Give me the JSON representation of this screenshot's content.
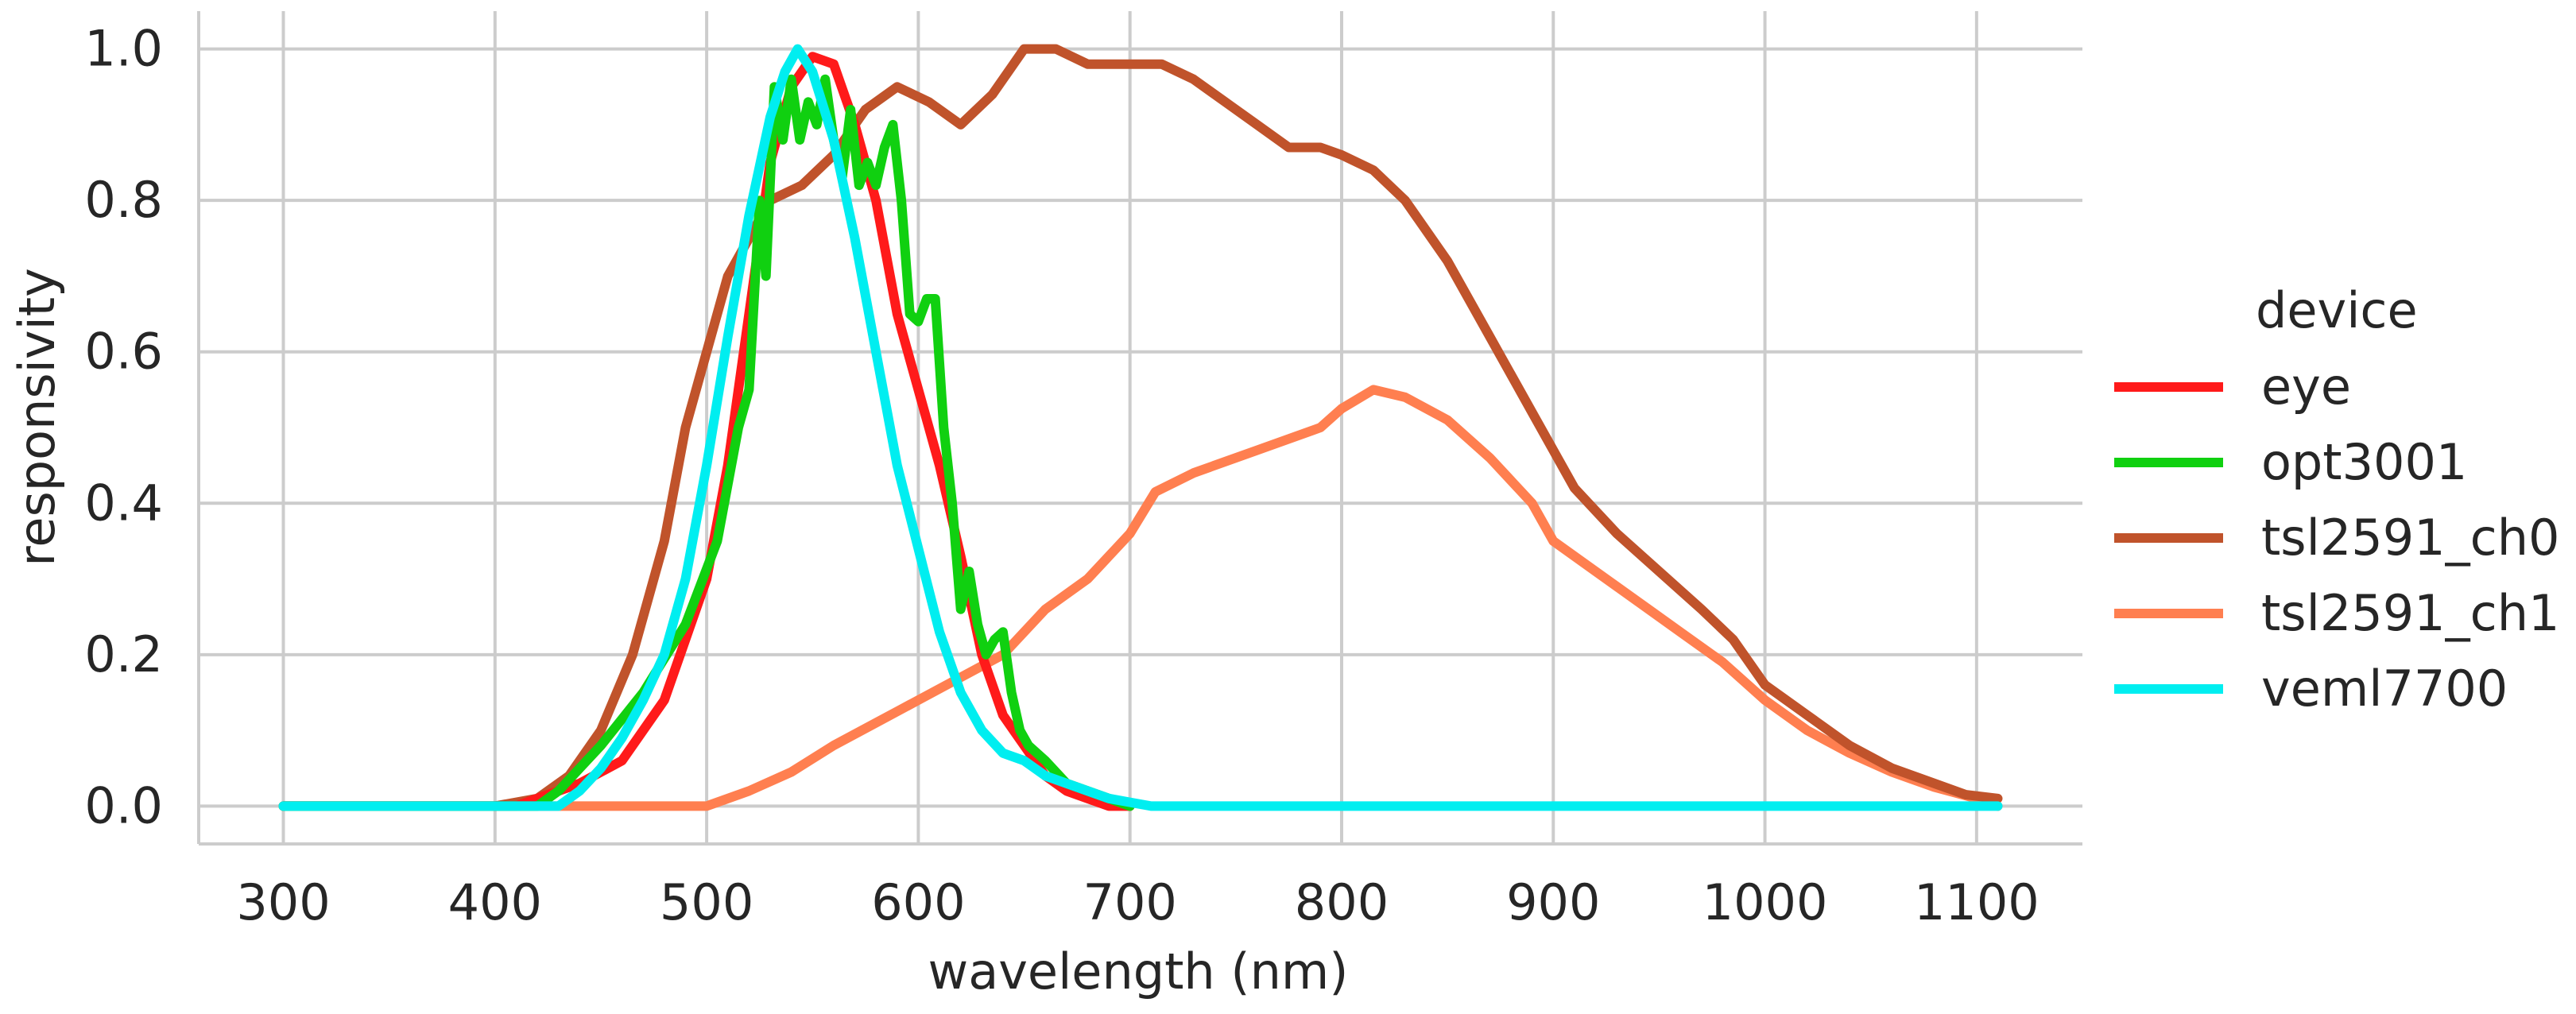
{
  "chart_data": {
    "type": "line",
    "title": "",
    "xlabel": "wavelength (nm)",
    "ylabel": "responsivity",
    "xlim": [
      260,
      1150
    ],
    "ylim": [
      -0.05,
      1.05
    ],
    "xticks": [
      300,
      400,
      500,
      600,
      700,
      800,
      900,
      1000,
      1100
    ],
    "yticks": [
      0.0,
      0.2,
      0.4,
      0.6,
      0.8,
      1.0
    ],
    "xtick_labels": [
      "300",
      "400",
      "500",
      "600",
      "700",
      "800",
      "900",
      "1000",
      "1100"
    ],
    "ytick_labels": [
      "0.0",
      "0.2",
      "0.4",
      "0.6",
      "0.8",
      "1.0"
    ],
    "grid": true,
    "legend": {
      "title": "device",
      "placement": "outside-right"
    },
    "series": [
      {
        "name": "tsl2591_ch1",
        "color": "#ff7f50",
        "x": [
          300,
          400,
          500,
          520,
          540,
          560,
          580,
          600,
          620,
          640,
          660,
          680,
          700,
          712,
          730,
          760,
          790,
          800,
          815,
          830,
          850,
          870,
          890,
          900,
          920,
          940,
          960,
          980,
          1000,
          1020,
          1040,
          1060,
          1080,
          1100,
          1110
        ],
        "y": [
          0.0,
          0.0,
          0.0,
          0.02,
          0.045,
          0.08,
          0.11,
          0.14,
          0.17,
          0.2,
          0.26,
          0.3,
          0.36,
          0.415,
          0.44,
          0.47,
          0.5,
          0.525,
          0.55,
          0.54,
          0.51,
          0.46,
          0.4,
          0.35,
          0.31,
          0.27,
          0.23,
          0.19,
          0.14,
          0.1,
          0.07,
          0.045,
          0.025,
          0.01,
          0.0
        ]
      },
      {
        "name": "tsl2591_ch0",
        "color": "#c0532b",
        "x": [
          300,
          400,
          420,
          435,
          450,
          465,
          480,
          490,
          500,
          510,
          520,
          530,
          545,
          560,
          575,
          590,
          605,
          620,
          635,
          650,
          665,
          680,
          700,
          715,
          730,
          745,
          760,
          775,
          790,
          800,
          815,
          830,
          850,
          870,
          890,
          910,
          930,
          950,
          970,
          985,
          1000,
          1020,
          1040,
          1060,
          1080,
          1095,
          1110
        ],
        "y": [
          0.0,
          0.0,
          0.01,
          0.04,
          0.1,
          0.2,
          0.35,
          0.5,
          0.6,
          0.7,
          0.75,
          0.8,
          0.82,
          0.86,
          0.92,
          0.95,
          0.93,
          0.9,
          0.94,
          1.0,
          1.0,
          0.98,
          0.98,
          0.98,
          0.96,
          0.93,
          0.9,
          0.87,
          0.87,
          0.86,
          0.84,
          0.8,
          0.72,
          0.62,
          0.52,
          0.42,
          0.36,
          0.31,
          0.26,
          0.22,
          0.16,
          0.12,
          0.08,
          0.05,
          0.03,
          0.015,
          0.01
        ]
      },
      {
        "name": "eye",
        "color": "#ff1a1a",
        "x": [
          300,
          410,
          420,
          440,
          460,
          480,
          500,
          510,
          520,
          530,
          540,
          550,
          560,
          570,
          580,
          590,
          600,
          610,
          620,
          630,
          640,
          650,
          660,
          670,
          680,
          690,
          700
        ],
        "y": [
          0.0,
          0.0,
          0.01,
          0.03,
          0.06,
          0.14,
          0.3,
          0.45,
          0.65,
          0.85,
          0.95,
          0.99,
          0.98,
          0.9,
          0.8,
          0.65,
          0.55,
          0.45,
          0.33,
          0.2,
          0.12,
          0.08,
          0.04,
          0.02,
          0.01,
          0.0,
          0.0
        ]
      },
      {
        "name": "opt3001",
        "color": "#10d010",
        "x": [
          300,
          420,
          430,
          450,
          470,
          490,
          505,
          515,
          520,
          525,
          528,
          532,
          536,
          540,
          544,
          548,
          552,
          556,
          560,
          564,
          568,
          572,
          576,
          580,
          584,
          588,
          592,
          596,
          600,
          604,
          608,
          612,
          616,
          620,
          624,
          628,
          632,
          636,
          640,
          644,
          648,
          652,
          660,
          670,
          680,
          690,
          700
        ],
        "y": [
          0.0,
          0.0,
          0.02,
          0.08,
          0.15,
          0.24,
          0.35,
          0.5,
          0.55,
          0.8,
          0.7,
          0.95,
          0.88,
          0.96,
          0.88,
          0.93,
          0.9,
          0.96,
          0.88,
          0.83,
          0.92,
          0.82,
          0.85,
          0.82,
          0.87,
          0.9,
          0.8,
          0.65,
          0.64,
          0.67,
          0.67,
          0.5,
          0.4,
          0.26,
          0.31,
          0.24,
          0.2,
          0.22,
          0.23,
          0.15,
          0.1,
          0.08,
          0.06,
          0.03,
          0.02,
          0.01,
          0.0
        ]
      },
      {
        "name": "veml7700",
        "color": "#00eef0",
        "x": [
          300,
          420,
          430,
          440,
          450,
          460,
          470,
          480,
          490,
          500,
          510,
          520,
          530,
          537,
          543,
          550,
          560,
          570,
          580,
          590,
          600,
          610,
          620,
          630,
          640,
          650,
          660,
          670,
          680,
          690,
          700,
          710,
          1110
        ],
        "y": [
          0.0,
          0.0,
          0.0,
          0.02,
          0.05,
          0.09,
          0.14,
          0.2,
          0.3,
          0.45,
          0.62,
          0.78,
          0.91,
          0.97,
          1.0,
          0.97,
          0.88,
          0.75,
          0.6,
          0.45,
          0.34,
          0.23,
          0.15,
          0.1,
          0.07,
          0.06,
          0.04,
          0.03,
          0.02,
          0.01,
          0.005,
          0.0,
          0.0
        ]
      }
    ],
    "legend_order": [
      "eye",
      "opt3001",
      "tsl2591_ch0",
      "tsl2591_ch1",
      "veml7700"
    ]
  }
}
